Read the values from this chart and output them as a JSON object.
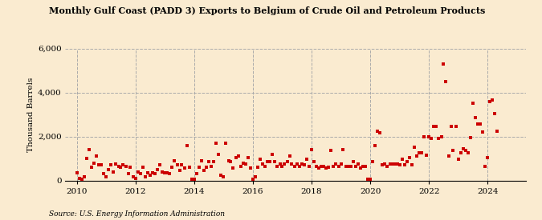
{
  "title": "Monthly Gulf Coast (PADD 3) Exports to Belgium of Crude Oil and Petroleum Products",
  "ylabel": "Thousand Barrels",
  "source": "Source: U.S. Energy Information Administration",
  "background_color": "#faebd0",
  "marker_color": "#cc0000",
  "xlim": [
    2009.6,
    2025.3
  ],
  "ylim": [
    0,
    6000
  ],
  "yticks": [
    0,
    2000,
    4000,
    6000
  ],
  "ytick_labels": [
    "0",
    "2,000",
    "4,000",
    "6,000"
  ],
  "xticks": [
    2010,
    2012,
    2014,
    2016,
    2018,
    2020,
    2022,
    2024
  ],
  "data": [
    [
      2010.0,
      350
    ],
    [
      2010.08,
      100
    ],
    [
      2010.17,
      50
    ],
    [
      2010.25,
      150
    ],
    [
      2010.33,
      1000
    ],
    [
      2010.42,
      1400
    ],
    [
      2010.5,
      600
    ],
    [
      2010.58,
      800
    ],
    [
      2010.67,
      1100
    ],
    [
      2010.75,
      700
    ],
    [
      2010.83,
      700
    ],
    [
      2010.92,
      300
    ],
    [
      2011.0,
      150
    ],
    [
      2011.08,
      500
    ],
    [
      2011.17,
      700
    ],
    [
      2011.25,
      400
    ],
    [
      2011.33,
      750
    ],
    [
      2011.42,
      650
    ],
    [
      2011.5,
      600
    ],
    [
      2011.58,
      700
    ],
    [
      2011.67,
      650
    ],
    [
      2011.75,
      300
    ],
    [
      2011.83,
      600
    ],
    [
      2011.92,
      150
    ],
    [
      2012.0,
      100
    ],
    [
      2012.08,
      400
    ],
    [
      2012.17,
      300
    ],
    [
      2012.25,
      600
    ],
    [
      2012.33,
      150
    ],
    [
      2012.42,
      350
    ],
    [
      2012.5,
      250
    ],
    [
      2012.58,
      350
    ],
    [
      2012.67,
      300
    ],
    [
      2012.75,
      500
    ],
    [
      2012.83,
      700
    ],
    [
      2012.92,
      400
    ],
    [
      2013.0,
      350
    ],
    [
      2013.08,
      350
    ],
    [
      2013.17,
      300
    ],
    [
      2013.25,
      600
    ],
    [
      2013.33,
      900
    ],
    [
      2013.42,
      700
    ],
    [
      2013.5,
      450
    ],
    [
      2013.58,
      700
    ],
    [
      2013.67,
      550
    ],
    [
      2013.75,
      1600
    ],
    [
      2013.83,
      600
    ],
    [
      2013.92,
      50
    ],
    [
      2014.0,
      50
    ],
    [
      2014.08,
      300
    ],
    [
      2014.17,
      600
    ],
    [
      2014.25,
      900
    ],
    [
      2014.33,
      450
    ],
    [
      2014.42,
      600
    ],
    [
      2014.5,
      850
    ],
    [
      2014.58,
      650
    ],
    [
      2014.67,
      850
    ],
    [
      2014.75,
      1700
    ],
    [
      2014.83,
      1200
    ],
    [
      2014.92,
      250
    ],
    [
      2015.0,
      150
    ],
    [
      2015.08,
      1700
    ],
    [
      2015.17,
      900
    ],
    [
      2015.25,
      850
    ],
    [
      2015.33,
      550
    ],
    [
      2015.42,
      1050
    ],
    [
      2015.5,
      1100
    ],
    [
      2015.58,
      650
    ],
    [
      2015.67,
      800
    ],
    [
      2015.75,
      750
    ],
    [
      2015.83,
      1050
    ],
    [
      2015.92,
      550
    ],
    [
      2016.0,
      50
    ],
    [
      2016.08,
      150
    ],
    [
      2016.17,
      600
    ],
    [
      2016.25,
      950
    ],
    [
      2016.33,
      750
    ],
    [
      2016.42,
      650
    ],
    [
      2016.5,
      850
    ],
    [
      2016.58,
      850
    ],
    [
      2016.67,
      1200
    ],
    [
      2016.75,
      850
    ],
    [
      2016.83,
      650
    ],
    [
      2016.92,
      750
    ],
    [
      2017.0,
      650
    ],
    [
      2017.08,
      750
    ],
    [
      2017.17,
      850
    ],
    [
      2017.25,
      1100
    ],
    [
      2017.33,
      750
    ],
    [
      2017.42,
      650
    ],
    [
      2017.5,
      750
    ],
    [
      2017.58,
      650
    ],
    [
      2017.67,
      750
    ],
    [
      2017.75,
      700
    ],
    [
      2017.83,
      950
    ],
    [
      2017.92,
      650
    ],
    [
      2018.0,
      1400
    ],
    [
      2018.08,
      850
    ],
    [
      2018.17,
      650
    ],
    [
      2018.25,
      550
    ],
    [
      2018.33,
      650
    ],
    [
      2018.42,
      650
    ],
    [
      2018.5,
      550
    ],
    [
      2018.58,
      600
    ],
    [
      2018.67,
      1350
    ],
    [
      2018.75,
      650
    ],
    [
      2018.83,
      750
    ],
    [
      2018.92,
      650
    ],
    [
      2019.0,
      750
    ],
    [
      2019.08,
      1400
    ],
    [
      2019.17,
      650
    ],
    [
      2019.25,
      650
    ],
    [
      2019.33,
      650
    ],
    [
      2019.42,
      850
    ],
    [
      2019.5,
      650
    ],
    [
      2019.58,
      750
    ],
    [
      2019.67,
      550
    ],
    [
      2019.75,
      650
    ],
    [
      2019.83,
      650
    ],
    [
      2019.92,
      50
    ],
    [
      2020.0,
      50
    ],
    [
      2020.08,
      850
    ],
    [
      2020.17,
      1600
    ],
    [
      2020.25,
      2250
    ],
    [
      2020.33,
      2150
    ],
    [
      2020.42,
      700
    ],
    [
      2020.5,
      750
    ],
    [
      2020.58,
      650
    ],
    [
      2020.67,
      750
    ],
    [
      2020.75,
      750
    ],
    [
      2020.83,
      750
    ],
    [
      2020.92,
      750
    ],
    [
      2021.0,
      700
    ],
    [
      2021.08,
      950
    ],
    [
      2021.17,
      700
    ],
    [
      2021.25,
      850
    ],
    [
      2021.33,
      1050
    ],
    [
      2021.42,
      700
    ],
    [
      2021.5,
      1500
    ],
    [
      2021.58,
      1100
    ],
    [
      2021.67,
      1250
    ],
    [
      2021.75,
      1250
    ],
    [
      2021.83,
      2000
    ],
    [
      2021.92,
      1150
    ],
    [
      2022.0,
      2000
    ],
    [
      2022.08,
      1900
    ],
    [
      2022.17,
      2450
    ],
    [
      2022.25,
      2450
    ],
    [
      2022.33,
      1900
    ],
    [
      2022.42,
      2000
    ],
    [
      2022.5,
      5300
    ],
    [
      2022.58,
      4500
    ],
    [
      2022.67,
      1100
    ],
    [
      2022.75,
      2450
    ],
    [
      2022.83,
      1350
    ],
    [
      2022.92,
      2450
    ],
    [
      2023.0,
      950
    ],
    [
      2023.08,
      1250
    ],
    [
      2023.17,
      1450
    ],
    [
      2023.25,
      1350
    ],
    [
      2023.33,
      1250
    ],
    [
      2023.42,
      1950
    ],
    [
      2023.5,
      3500
    ],
    [
      2023.58,
      2850
    ],
    [
      2023.67,
      2550
    ],
    [
      2023.75,
      2550
    ],
    [
      2023.83,
      2200
    ],
    [
      2023.92,
      650
    ],
    [
      2024.0,
      1050
    ],
    [
      2024.08,
      3600
    ],
    [
      2024.17,
      3650
    ],
    [
      2024.25,
      3050
    ],
    [
      2024.33,
      2250
    ]
  ]
}
